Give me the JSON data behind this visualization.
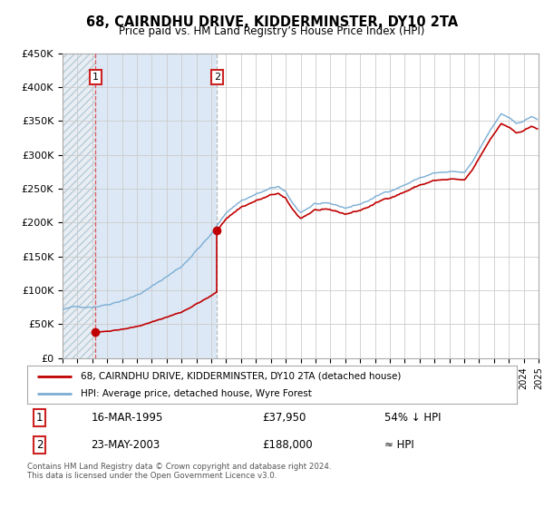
{
  "title": "68, CAIRNDHU DRIVE, KIDDERMINSTER, DY10 2TA",
  "subtitle": "Price paid vs. HM Land Registry’s House Price Index (HPI)",
  "legend_line1": "68, CAIRNDHU DRIVE, KIDDERMINSTER, DY10 2TA (detached house)",
  "legend_line2": "HPI: Average price, detached house, Wyre Forest",
  "transaction1_date": "16-MAR-1995",
  "transaction1_price": 37950,
  "transaction1_note": "54% ↓ HPI",
  "transaction2_date": "23-MAY-2003",
  "transaction2_price": 188000,
  "transaction2_note": "≈ HPI",
  "footer": "Contains HM Land Registry data © Crown copyright and database right 2024.\nThis data is licensed under the Open Government Licence v3.0.",
  "ylim": [
    0,
    450000
  ],
  "yticks": [
    0,
    50000,
    100000,
    150000,
    200000,
    250000,
    300000,
    350000,
    400000,
    450000
  ],
  "hpi_color": "#7aadd4",
  "price_color": "#c00000",
  "transaction1_x": 1995.21,
  "transaction2_x": 2003.39,
  "xmin": 1993.0,
  "xmax": 2025.0
}
